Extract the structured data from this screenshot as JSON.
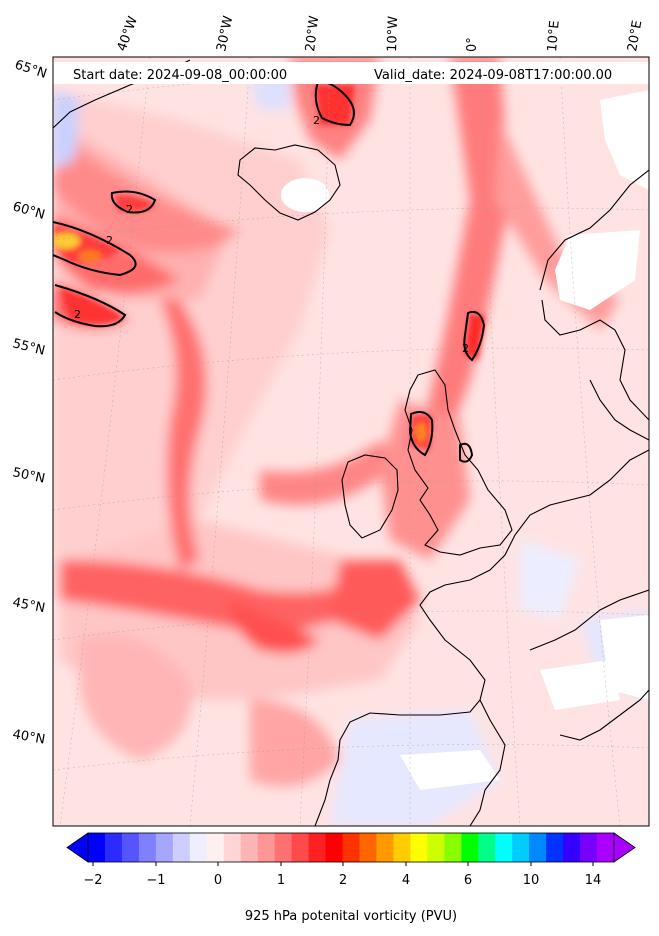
{
  "header": {
    "start_date": "Start date: 2024-09-08_00:00:00",
    "valid_date": "Valid_date: 2024-09-08T17:00:00.00"
  },
  "lon_labels": [
    "40°W",
    "30°W",
    "20°W",
    "10°W",
    "0°",
    "10°E",
    "20°E"
  ],
  "lat_labels": [
    "65°N",
    "60°N",
    "55°N",
    "50°N",
    "45°N",
    "40°N"
  ],
  "colorbar": {
    "title": "925 hPa potenital vorticity (PVU)",
    "tick_labels": [
      "−2",
      "−1",
      "0",
      "1",
      "2",
      "4",
      "6",
      "10",
      "14"
    ],
    "colors": [
      "#0000ff",
      "#2b2bff",
      "#5555ff",
      "#8080ff",
      "#a6a6ff",
      "#cdcdff",
      "#eeeeff",
      "#fff0f0",
      "#ffd5d5",
      "#ffb5b5",
      "#ff9696",
      "#ff7070",
      "#ff4a4a",
      "#ff2020",
      "#ff0000",
      "#ff3300",
      "#ff6600",
      "#ff9900",
      "#ffcc00",
      "#ffff00",
      "#ccff00",
      "#88ff00",
      "#00ff00",
      "#00ff88",
      "#00ffff",
      "#00ccff",
      "#0088ff",
      "#0033ff",
      "#3300ff",
      "#7700ff",
      "#aa00ff"
    ]
  },
  "contour": {
    "label": "2"
  }
}
